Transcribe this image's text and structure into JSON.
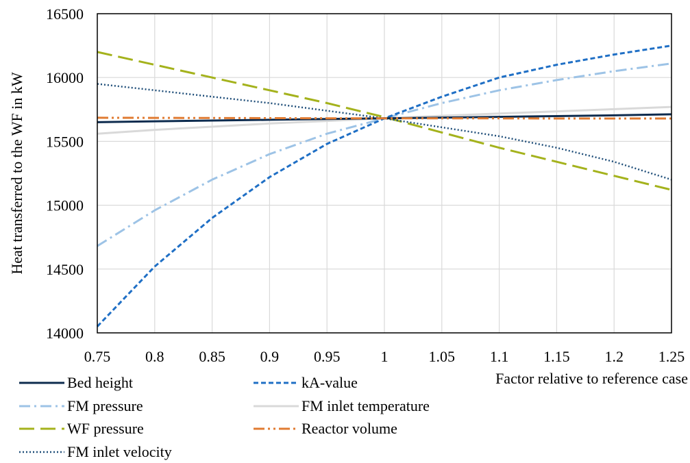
{
  "chart_data": {
    "type": "line",
    "title": "",
    "xlabel": "Factor relative to reference case",
    "ylabel": "Heat transferred to the WF in kW",
    "xlim": [
      0.75,
      1.25
    ],
    "ylim": [
      14000,
      16500
    ],
    "grid": true,
    "legend_position": "bottom",
    "x_ticks": [
      "0.75",
      "0.8",
      "0.85",
      "0.9",
      "0.95",
      "1",
      "1.05",
      "1.1",
      "1.15",
      "1.2",
      "1.25"
    ],
    "y_ticks": [
      "14000",
      "14500",
      "15000",
      "15500",
      "16000",
      "16500"
    ],
    "x": [
      0.75,
      0.8,
      0.85,
      0.9,
      0.95,
      1.0,
      1.05,
      1.1,
      1.15,
      1.2,
      1.25
    ],
    "series": [
      {
        "name": "Bed height",
        "color": "#0d2b4e",
        "dash": "solid",
        "width": 3,
        "values": [
          15650,
          15657,
          15663,
          15669,
          15675,
          15680,
          15686,
          15692,
          15698,
          15704,
          15712
        ]
      },
      {
        "name": "kA-value",
        "color": "#1f6fc5",
        "dash": "short-dash",
        "width": 3,
        "values": [
          14050,
          14520,
          14900,
          15220,
          15480,
          15680,
          15850,
          16000,
          16100,
          16180,
          16250
        ]
      },
      {
        "name": "FM pressure",
        "color": "#9dc3e6",
        "dash": "dash-dot",
        "width": 3,
        "values": [
          14680,
          14960,
          15200,
          15400,
          15560,
          15680,
          15800,
          15900,
          15980,
          16050,
          16110
        ]
      },
      {
        "name": "FM inlet temperature",
        "color": "#d9d9d9",
        "dash": "solid",
        "width": 3,
        "values": [
          15560,
          15590,
          15615,
          15640,
          15660,
          15680,
          15700,
          15718,
          15735,
          15752,
          15770
        ]
      },
      {
        "name": "WF pressure",
        "color": "#a4b21c",
        "dash": "long-dash",
        "width": 3,
        "values": [
          16200,
          16100,
          16000,
          15900,
          15800,
          15690,
          15570,
          15450,
          15340,
          15230,
          15120
        ]
      },
      {
        "name": "Reactor volume",
        "color": "#e07b32",
        "dash": "dash-dot-dot",
        "width": 3,
        "values": [
          15685,
          15684,
          15683,
          15682,
          15681,
          15680,
          15680,
          15680,
          15679,
          15679,
          15679
        ]
      },
      {
        "name": "FM inlet velocity",
        "color": "#1f4e79",
        "dash": "dot",
        "width": 2.5,
        "values": [
          15950,
          15900,
          15850,
          15800,
          15740,
          15680,
          15610,
          15540,
          15450,
          15340,
          15200
        ]
      }
    ]
  }
}
